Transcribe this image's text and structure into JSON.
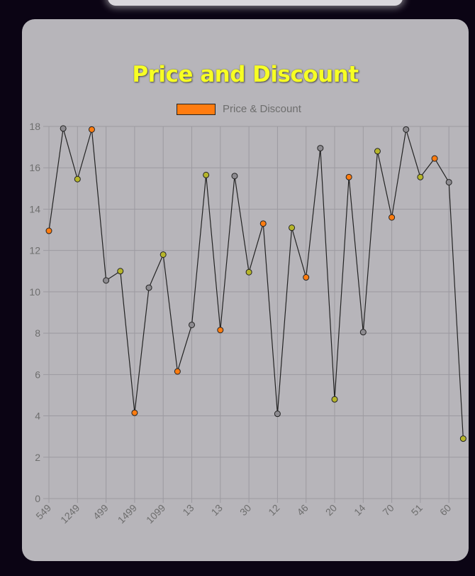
{
  "chart_data": {
    "type": "line",
    "title": "Price and Discount",
    "legend": {
      "label": "Price & Discount",
      "position": "top",
      "color": "#ff7c10"
    },
    "xlabel": "",
    "ylabel": "",
    "ylim": [
      0,
      18
    ],
    "yticks": [
      0,
      2,
      4,
      6,
      8,
      10,
      12,
      14,
      16,
      18
    ],
    "x_tick_labels": [
      "549",
      "1249",
      "499",
      "1499",
      "1099",
      "13",
      "13",
      "30",
      "12",
      "46",
      "20",
      "14",
      "70",
      "51",
      "60"
    ],
    "grid": true,
    "line_color": "#222222",
    "points": [
      {
        "y": 12.95,
        "color": "#ff7c10"
      },
      {
        "y": 17.9,
        "color": "#8d8b90"
      },
      {
        "y": 15.45,
        "color": "#b6b52a"
      },
      {
        "y": 17.85,
        "color": "#ff7c10"
      },
      {
        "y": 10.55,
        "color": "#8d8b90"
      },
      {
        "y": 11.0,
        "color": "#b6b52a"
      },
      {
        "y": 4.15,
        "color": "#ff7c10"
      },
      {
        "y": 10.2,
        "color": "#8d8b90"
      },
      {
        "y": 11.8,
        "color": "#b6b52a"
      },
      {
        "y": 6.15,
        "color": "#ff7c10"
      },
      {
        "y": 8.4,
        "color": "#8d8b90"
      },
      {
        "y": 15.65,
        "color": "#b6b52a"
      },
      {
        "y": 8.15,
        "color": "#ff7c10"
      },
      {
        "y": 15.6,
        "color": "#8d8b90"
      },
      {
        "y": 10.95,
        "color": "#b6b52a"
      },
      {
        "y": 13.3,
        "color": "#ff7c10"
      },
      {
        "y": 4.1,
        "color": "#8d8b90"
      },
      {
        "y": 13.1,
        "color": "#b6b52a"
      },
      {
        "y": 10.7,
        "color": "#ff7c10"
      },
      {
        "y": 16.95,
        "color": "#8d8b90"
      },
      {
        "y": 4.8,
        "color": "#b6b52a"
      },
      {
        "y": 15.55,
        "color": "#ff7c10"
      },
      {
        "y": 8.05,
        "color": "#8d8b90"
      },
      {
        "y": 16.8,
        "color": "#b6b52a"
      },
      {
        "y": 13.6,
        "color": "#ff7c10"
      },
      {
        "y": 17.85,
        "color": "#8d8b90"
      },
      {
        "y": 15.55,
        "color": "#b6b52a"
      },
      {
        "y": 16.45,
        "color": "#ff7c10"
      },
      {
        "y": 15.3,
        "color": "#8d8b90"
      },
      {
        "y": 2.9,
        "color": "#b6b52a"
      }
    ]
  }
}
